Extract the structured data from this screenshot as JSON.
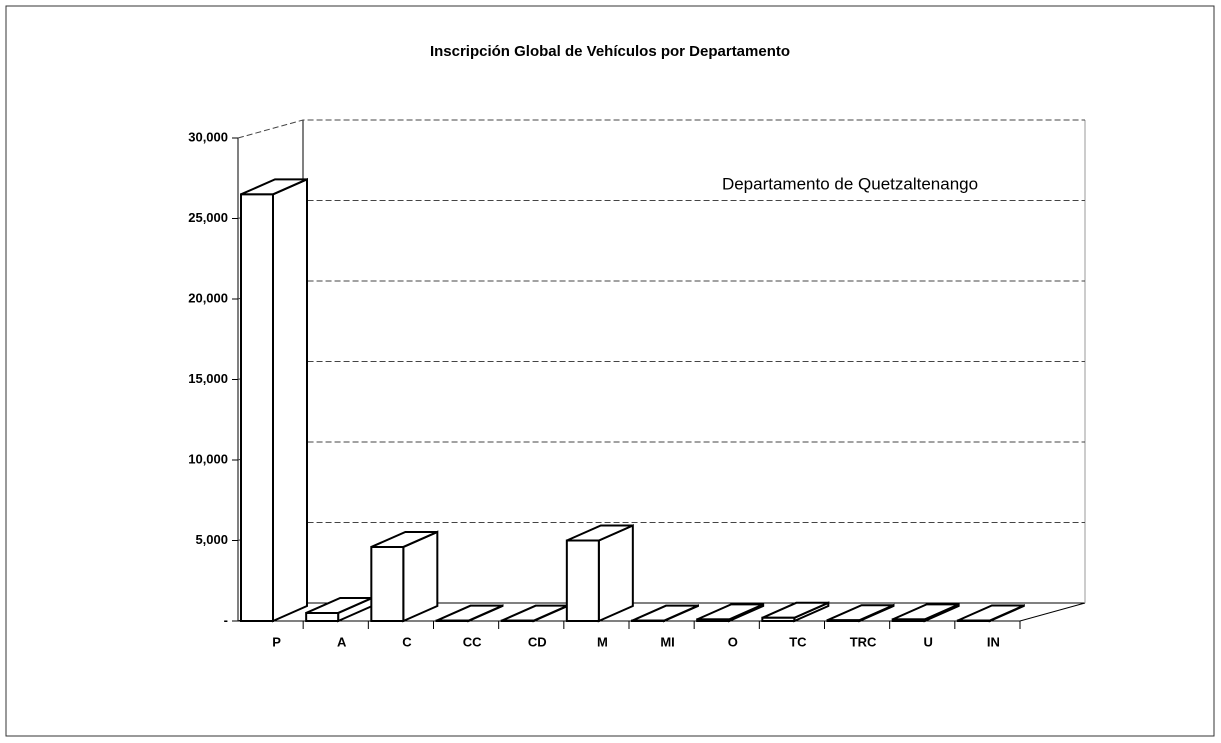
{
  "chart_data": {
    "type": "bar3d",
    "title": "Inscripción Global de Vehículos por Departamento",
    "annotation": "Departamento de Quetzaltenango",
    "categories": [
      "P",
      "A",
      "C",
      "CC",
      "CD",
      "M",
      "MI",
      "O",
      "TC",
      "TRC",
      "U",
      "IN"
    ],
    "values": [
      26500,
      500,
      4600,
      20,
      20,
      5000,
      20,
      100,
      200,
      50,
      100,
      30
    ],
    "color": "#ffffff",
    "ylim": [
      0,
      30000
    ],
    "yticks": [
      {
        "value": 0,
        "label": "-"
      },
      {
        "value": 5000,
        "label": "5,000"
      },
      {
        "value": 10000,
        "label": "10,000"
      },
      {
        "value": 15000,
        "label": "15,000"
      },
      {
        "value": 20000,
        "label": "20,000"
      },
      {
        "value": 25000,
        "label": "25,000"
      },
      {
        "value": 30000,
        "label": "30,000"
      }
    ],
    "grid": true
  }
}
